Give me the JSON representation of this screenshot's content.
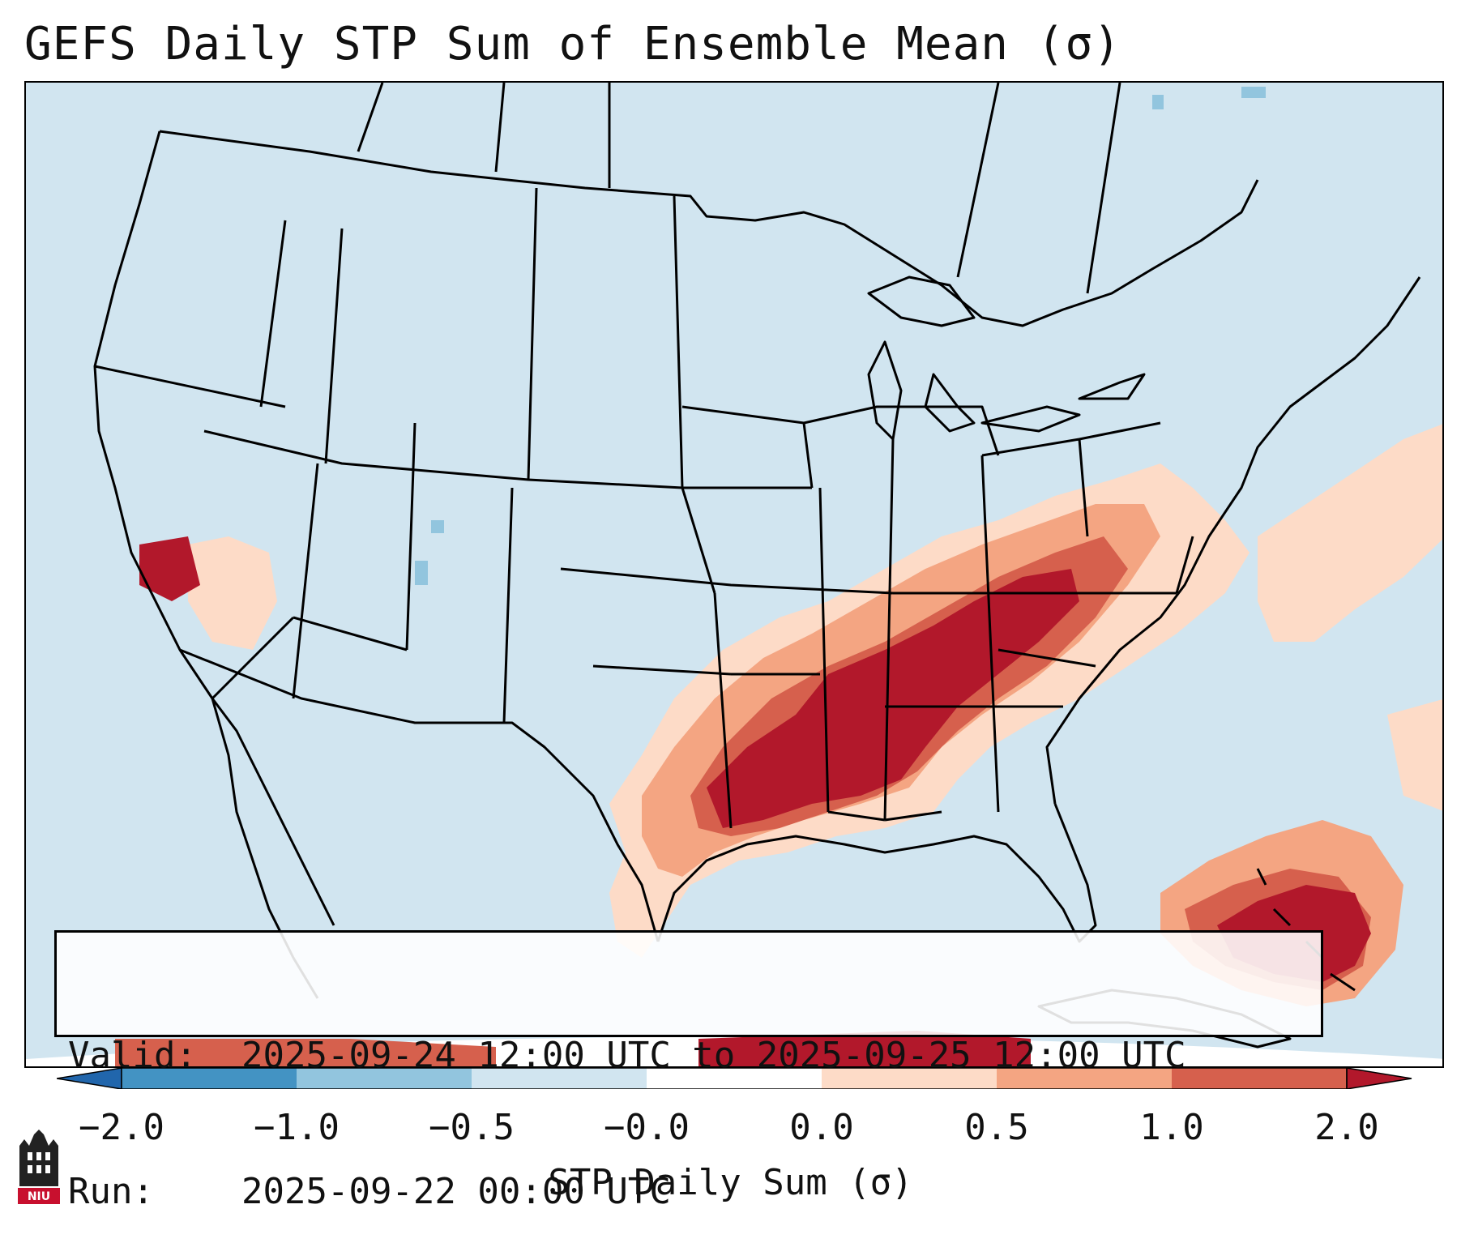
{
  "title": "GEFS Daily STP Sum of Ensemble Mean (σ)",
  "info": {
    "valid_label": "Valid:",
    "valid_value": "2025-09-24 12:00 UTC to 2025-09-25 12:00 UTC",
    "run_label": "Run:",
    "run_value": "2025-09-22 00:00 UTC"
  },
  "colorbar": {
    "title": "STP Daily Sum (σ)",
    "ticks": [
      "−2.0",
      "−1.0",
      "−0.5",
      "−0.0",
      "0.0",
      "0.5",
      "1.0",
      "2.0"
    ],
    "colors": [
      "#4393c3",
      "#92c5de",
      "#d1e5f0",
      "#ffffff",
      "#fddbc7",
      "#f4a582",
      "#d6604d",
      "#b2182b"
    ]
  },
  "logo": {
    "text": "NIU",
    "accent_color": "#c8102e"
  },
  "map": {
    "background_color": "#d1e5f0",
    "outside_color": "#ffffff",
    "border_color": "#000000"
  }
}
